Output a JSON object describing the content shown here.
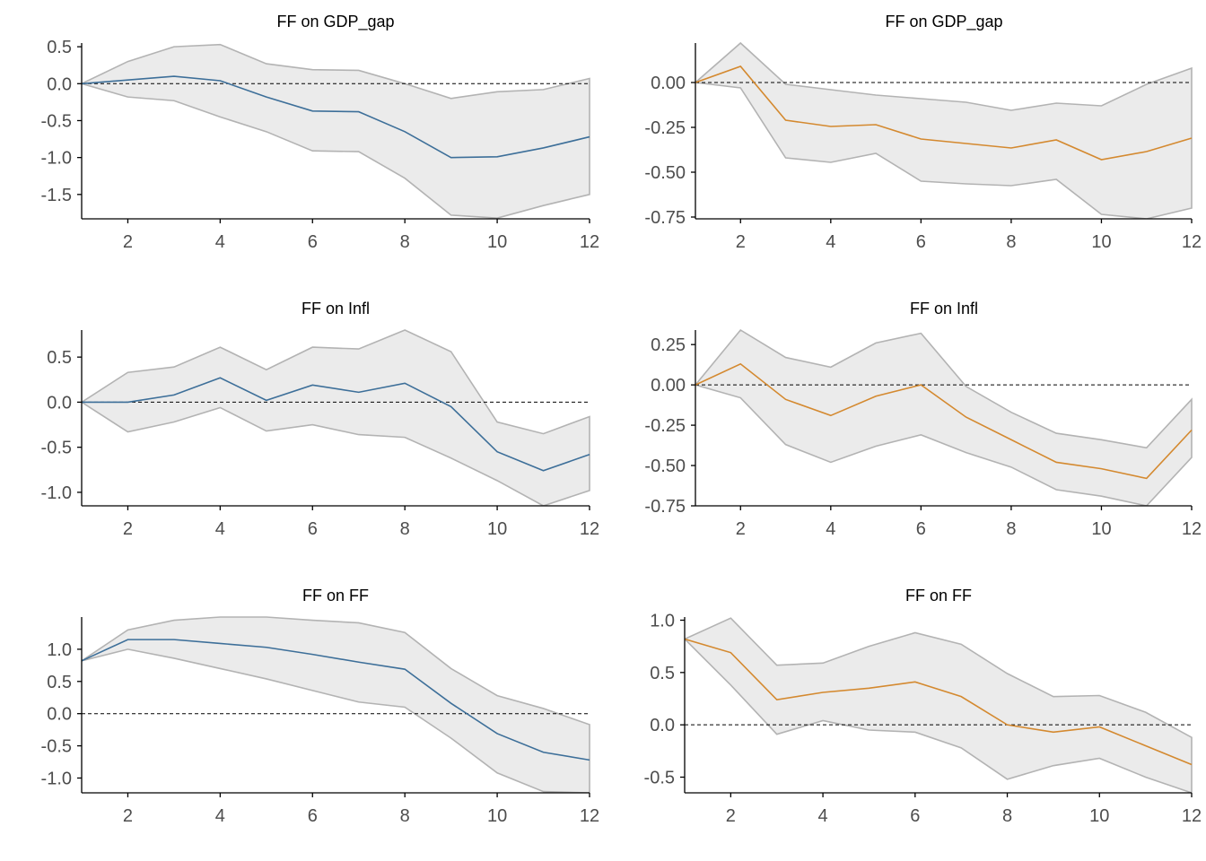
{
  "colors": {
    "left_series": "#3d6f99",
    "right_series": "#d4892f",
    "band_fill": "#ebebeb",
    "band_edge": "#b3b3b3"
  },
  "chart_data": [
    {
      "type": "line",
      "title": "FF on GDP_gap",
      "x": [
        1,
        2,
        3,
        4,
        5,
        6,
        7,
        8,
        9,
        10,
        11,
        12
      ],
      "xticks": [
        2,
        4,
        6,
        8,
        10,
        12
      ],
      "xlim": [
        1,
        12
      ],
      "ylim": [
        -1.83,
        0.55
      ],
      "yticks": [
        0.5,
        0.0,
        -0.5,
        -1.0,
        -1.5
      ],
      "ytick_labels": [
        "0.5",
        "0.0",
        "-0.5",
        "-1.0",
        "-1.5"
      ],
      "zero_line": true,
      "series": [
        {
          "role": "response",
          "color": "#3d6f99",
          "values": [
            0.0,
            0.05,
            0.1,
            0.04,
            -0.18,
            -0.37,
            -0.38,
            -0.65,
            -1.0,
            -0.99,
            -0.87,
            -0.72
          ]
        },
        {
          "role": "upper",
          "values": [
            0.0,
            0.3,
            0.5,
            0.53,
            0.27,
            0.19,
            0.18,
            0.0,
            -0.2,
            -0.11,
            -0.08,
            0.07
          ]
        },
        {
          "role": "lower",
          "values": [
            0.0,
            -0.18,
            -0.23,
            -0.45,
            -0.65,
            -0.91,
            -0.92,
            -1.28,
            -1.78,
            -1.82,
            -1.65,
            -1.5
          ]
        }
      ]
    },
    {
      "type": "line",
      "title": "FF on GDP_gap",
      "x": [
        1,
        2,
        3,
        4,
        5,
        6,
        7,
        8,
        9,
        10,
        11,
        12
      ],
      "xticks": [
        2,
        4,
        6,
        8,
        10,
        12
      ],
      "xlim": [
        1,
        12
      ],
      "ylim": [
        -0.76,
        0.22
      ],
      "yticks": [
        0.0,
        -0.25,
        -0.5,
        -0.75
      ],
      "ytick_labels": [
        "0.00",
        "-0.25",
        "-0.50",
        "-0.75"
      ],
      "zero_line": true,
      "series": [
        {
          "role": "response",
          "color": "#d4892f",
          "values": [
            0.0,
            0.09,
            -0.21,
            -0.245,
            -0.235,
            -0.315,
            -0.34,
            -0.365,
            -0.32,
            -0.43,
            -0.385,
            -0.31
          ]
        },
        {
          "role": "upper",
          "values": [
            0.0,
            0.22,
            -0.01,
            -0.04,
            -0.07,
            -0.09,
            -0.11,
            -0.155,
            -0.115,
            -0.13,
            -0.01,
            0.08
          ]
        },
        {
          "role": "lower",
          "values": [
            0.0,
            -0.03,
            -0.42,
            -0.445,
            -0.395,
            -0.55,
            -0.565,
            -0.575,
            -0.54,
            -0.735,
            -0.76,
            -0.7
          ]
        }
      ]
    },
    {
      "type": "line",
      "title": "FF on Infl",
      "x": [
        1,
        2,
        3,
        4,
        5,
        6,
        7,
        8,
        9,
        10,
        11,
        12
      ],
      "xticks": [
        2,
        4,
        6,
        8,
        10,
        12
      ],
      "xlim": [
        1,
        12
      ],
      "ylim": [
        -1.15,
        0.8
      ],
      "yticks": [
        0.5,
        0.0,
        -0.5,
        -1.0
      ],
      "ytick_labels": [
        "0.5",
        "0.0",
        "-0.5",
        "-1.0"
      ],
      "zero_line": true,
      "series": [
        {
          "role": "response",
          "color": "#3d6f99",
          "values": [
            0.0,
            0.0,
            0.08,
            0.27,
            0.02,
            0.19,
            0.11,
            0.21,
            -0.05,
            -0.55,
            -0.76,
            -0.58
          ]
        },
        {
          "role": "upper",
          "values": [
            0.0,
            0.33,
            0.39,
            0.61,
            0.36,
            0.61,
            0.59,
            0.8,
            0.56,
            -0.22,
            -0.35,
            -0.16
          ]
        },
        {
          "role": "lower",
          "values": [
            0.0,
            -0.33,
            -0.22,
            -0.06,
            -0.32,
            -0.25,
            -0.36,
            -0.39,
            -0.62,
            -0.87,
            -1.15,
            -0.98
          ]
        }
      ]
    },
    {
      "type": "line",
      "title": "FF on Infl",
      "x": [
        1,
        2,
        3,
        4,
        5,
        6,
        7,
        8,
        9,
        10,
        11,
        12
      ],
      "xticks": [
        2,
        4,
        6,
        8,
        10,
        12
      ],
      "xlim": [
        1,
        12
      ],
      "ylim": [
        -0.75,
        0.34
      ],
      "yticks": [
        0.25,
        0.0,
        -0.25,
        -0.5,
        -0.75
      ],
      "ytick_labels": [
        "0.25",
        "0.00",
        "-0.25",
        "-0.50",
        "-0.75"
      ],
      "zero_line": true,
      "series": [
        {
          "role": "response",
          "color": "#d4892f",
          "values": [
            0.0,
            0.13,
            -0.09,
            -0.19,
            -0.07,
            0.0,
            -0.2,
            -0.34,
            -0.48,
            -0.52,
            -0.58,
            -0.28
          ]
        },
        {
          "role": "upper",
          "values": [
            0.0,
            0.34,
            0.17,
            0.11,
            0.26,
            0.32,
            -0.01,
            -0.17,
            -0.3,
            -0.34,
            -0.39,
            -0.09
          ]
        },
        {
          "role": "lower",
          "values": [
            0.0,
            -0.08,
            -0.37,
            -0.48,
            -0.38,
            -0.31,
            -0.42,
            -0.51,
            -0.65,
            -0.69,
            -0.75,
            -0.45
          ]
        }
      ]
    },
    {
      "type": "line",
      "title": "FF on FF",
      "x": [
        1,
        2,
        3,
        4,
        5,
        6,
        7,
        8,
        9,
        10,
        11,
        12
      ],
      "xticks": [
        2,
        4,
        6,
        8,
        10,
        12
      ],
      "xlim": [
        1,
        12
      ],
      "ylim": [
        -1.23,
        1.5
      ],
      "yticks": [
        1.0,
        0.5,
        0.0,
        -0.5,
        -1.0
      ],
      "ytick_labels": [
        "1.0",
        "0.5",
        "0.0",
        "-0.5",
        "-1.0"
      ],
      "zero_line": true,
      "series": [
        {
          "role": "response",
          "color": "#3d6f99",
          "values": [
            0.82,
            1.15,
            1.15,
            1.09,
            1.03,
            0.92,
            0.8,
            0.69,
            0.16,
            -0.31,
            -0.6,
            -0.72
          ]
        },
        {
          "role": "upper",
          "values": [
            0.82,
            1.3,
            1.45,
            1.5,
            1.5,
            1.45,
            1.41,
            1.26,
            0.7,
            0.28,
            0.08,
            -0.17
          ]
        },
        {
          "role": "lower",
          "values": [
            0.82,
            1.0,
            0.86,
            0.7,
            0.54,
            0.36,
            0.18,
            0.1,
            -0.38,
            -0.92,
            -1.21,
            -1.23
          ]
        }
      ]
    },
    {
      "type": "line",
      "title": "FF on FF",
      "x": [
        1,
        2,
        3,
        4,
        5,
        6,
        7,
        8,
        9,
        10,
        11,
        12
      ],
      "xticks": [
        2,
        4,
        6,
        8,
        10,
        12
      ],
      "xlim": [
        1,
        12
      ],
      "ylim": [
        -0.65,
        1.03
      ],
      "yticks": [
        1.0,
        0.5,
        0.0,
        -0.5
      ],
      "ytick_labels": [
        "1.0",
        "0.5",
        "0.0",
        "-0.5"
      ],
      "zero_line": true,
      "series": [
        {
          "role": "response",
          "color": "#d4892f",
          "values": [
            0.82,
            0.69,
            0.24,
            0.31,
            0.35,
            0.41,
            0.27,
            0.0,
            -0.07,
            -0.02,
            -0.2,
            -0.38
          ]
        },
        {
          "role": "upper",
          "values": [
            0.82,
            1.02,
            0.57,
            0.59,
            0.75,
            0.88,
            0.77,
            0.49,
            0.27,
            0.28,
            0.12,
            -0.12
          ]
        },
        {
          "role": "lower",
          "values": [
            0.82,
            0.38,
            -0.09,
            0.04,
            -0.05,
            -0.07,
            -0.22,
            -0.52,
            -0.39,
            -0.32,
            -0.5,
            -0.65
          ]
        }
      ]
    }
  ]
}
